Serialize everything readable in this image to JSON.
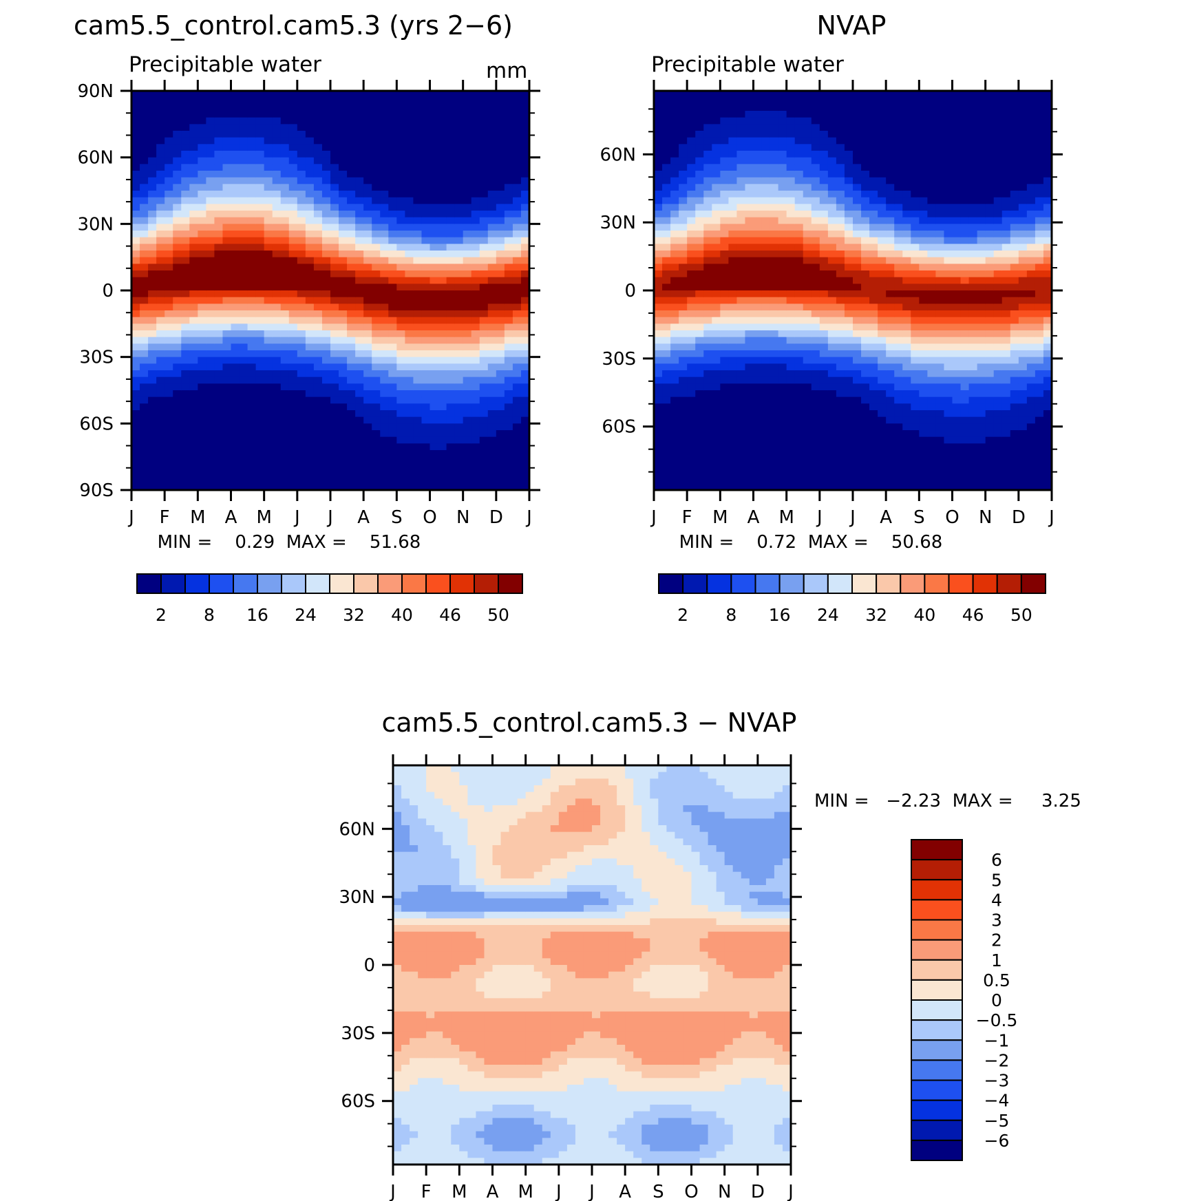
{
  "figure": {
    "colors": {
      "precip_scale": [
        "#000080",
        "#0019b0",
        "#0532e0",
        "#1e50f0",
        "#4678f0",
        "#78a0f0",
        "#aac8fa",
        "#d2e6fa",
        "#fae6d2",
        "#fac8aa",
        "#fa9b78",
        "#fa7846",
        "#fa501e",
        "#e13205",
        "#b41e05",
        "#820000"
      ],
      "diff_scale": [
        "#000080",
        "#0019b0",
        "#0532e0",
        "#1e50f0",
        "#4678f0",
        "#78a0f0",
        "#aac8fa",
        "#d2e6fa",
        "#fae6d2",
        "#fac8aa",
        "#fa9b78",
        "#fa7846",
        "#fa501e",
        "#e13205",
        "#b41e05",
        "#820000"
      ]
    }
  },
  "chart_data": [
    {
      "type": "heatmap",
      "panel": "model",
      "title": "cam5.5_control.cam5.3 (yrs 2−6)",
      "subtitle": "Precipitable water",
      "units": "mm",
      "xlabel": "",
      "ylabel": "",
      "x_ticks": [
        "J",
        "F",
        "M",
        "A",
        "M",
        "J",
        "J",
        "A",
        "S",
        "O",
        "N",
        "D",
        "J"
      ],
      "y_ticks": [
        "90N",
        "60N",
        "30N",
        "0",
        "30S",
        "60S",
        "90S"
      ],
      "ylim": [
        -90,
        90
      ],
      "stats": "MIN =    0.29  MAX =    51.68",
      "levels": [
        "2",
        "8",
        "16",
        "24",
        "32",
        "40",
        "46",
        "50"
      ],
      "min": 0.29,
      "max": 51.68,
      "model": {
        "center_amp": 5,
        "peak_lat": 5,
        "width": 28,
        "max_val": 51,
        "north_amp": 6,
        "south_amp": 4
      }
    },
    {
      "type": "heatmap",
      "panel": "obs",
      "title": "NVAP",
      "subtitle": "Precipitable water",
      "units": "",
      "xlabel": "",
      "ylabel": "",
      "x_ticks": [
        "J",
        "F",
        "M",
        "A",
        "M",
        "J",
        "J",
        "A",
        "S",
        "O",
        "N",
        "D",
        "J"
      ],
      "y_ticks": [
        "60N",
        "30N",
        "0",
        "30S",
        "60S"
      ],
      "ylim": [
        -88,
        88
      ],
      "stats": "MIN =    0.72  MAX =    50.68",
      "levels": [
        "2",
        "8",
        "16",
        "24",
        "32",
        "40",
        "46",
        "50"
      ],
      "min": 0.72,
      "max": 50.68,
      "model": {
        "center_amp": 6,
        "peak_lat": 4,
        "width": 27,
        "max_val": 50,
        "north_amp": 7,
        "south_amp": 3
      }
    },
    {
      "type": "heatmap",
      "panel": "diff",
      "title": "cam5.5_control.cam5.3 − NVAP",
      "units": "",
      "xlabel": "",
      "ylabel": "",
      "x_ticks": [
        "J",
        "F",
        "M",
        "A",
        "M",
        "J",
        "J",
        "A",
        "S",
        "O",
        "N",
        "D",
        "J"
      ],
      "y_ticks": [
        "60N",
        "30N",
        "0",
        "30S",
        "60S"
      ],
      "ylim": [
        -88,
        88
      ],
      "stats": "MIN =   −2.23  MAX =     3.25",
      "levels": [
        "6",
        "5",
        "4",
        "3",
        "2",
        "1",
        "0.5",
        "0",
        "−0.5",
        "−1",
        "−2",
        "−3",
        "−4",
        "−5",
        "−6"
      ],
      "min": -2.23,
      "max": 3.25
    }
  ]
}
